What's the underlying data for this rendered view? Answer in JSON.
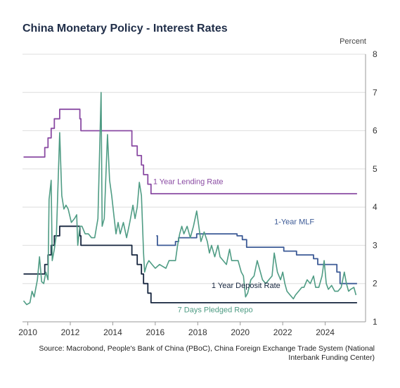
{
  "title": "China Monetary Policy - Interest Rates",
  "unit": "Percent",
  "source": "Source: Macrobond, People's Bank of China (PBoC), China Foreign Exchange Trade System (National Interbank Funding Center)",
  "chart_data": {
    "type": "line",
    "title": "China Monetary Policy - Interest Rates",
    "ylabel": "Percent",
    "xlim": [
      2009.75,
      2025.9
    ],
    "ylim": [
      1,
      8
    ],
    "x_ticks": [
      "2010",
      "2012",
      "2014",
      "2016",
      "2018",
      "2020",
      "2022",
      "2024"
    ],
    "y_ticks": [
      "1",
      "2",
      "3",
      "4",
      "5",
      "6",
      "7",
      "8"
    ],
    "grid": true,
    "y_axis_side": "right",
    "series": [
      {
        "name": "1 Year Lending Rate",
        "color": "#8a4ba3",
        "step": true,
        "points": [
          [
            2009.8,
            5.31
          ],
          [
            2010.8,
            5.56
          ],
          [
            2010.95,
            5.81
          ],
          [
            2011.1,
            6.06
          ],
          [
            2011.25,
            6.31
          ],
          [
            2011.5,
            6.56
          ],
          [
            2012.45,
            6.31
          ],
          [
            2012.5,
            6.0
          ],
          [
            2014.9,
            5.6
          ],
          [
            2015.15,
            5.35
          ],
          [
            2015.35,
            5.1
          ],
          [
            2015.45,
            4.85
          ],
          [
            2015.65,
            4.6
          ],
          [
            2015.8,
            4.35
          ],
          [
            2025.5,
            4.35
          ]
        ]
      },
      {
        "name": "1-Year MLF",
        "color": "#3c5a96",
        "step": true,
        "points": [
          [
            2016.05,
            3.25
          ],
          [
            2016.1,
            3.0
          ],
          [
            2016.95,
            3.1
          ],
          [
            2017.1,
            3.2
          ],
          [
            2017.95,
            3.3
          ],
          [
            2019.85,
            3.25
          ],
          [
            2020.1,
            3.15
          ],
          [
            2020.3,
            2.95
          ],
          [
            2022.05,
            2.85
          ],
          [
            2022.65,
            2.75
          ],
          [
            2023.45,
            2.65
          ],
          [
            2023.65,
            2.5
          ],
          [
            2024.55,
            2.3
          ],
          [
            2024.7,
            2.0
          ],
          [
            2025.5,
            2.0
          ]
        ]
      },
      {
        "name": "1 Year Deposit Rate",
        "color": "#16253e",
        "step": true,
        "points": [
          [
            2009.8,
            2.25
          ],
          [
            2010.8,
            2.5
          ],
          [
            2010.95,
            2.75
          ],
          [
            2011.1,
            3.0
          ],
          [
            2011.25,
            3.25
          ],
          [
            2011.5,
            3.5
          ],
          [
            2012.45,
            3.25
          ],
          [
            2012.5,
            3.0
          ],
          [
            2014.9,
            2.75
          ],
          [
            2015.15,
            2.5
          ],
          [
            2015.35,
            2.25
          ],
          [
            2015.45,
            2.0
          ],
          [
            2015.65,
            1.75
          ],
          [
            2015.8,
            1.5
          ],
          [
            2025.5,
            1.5
          ]
        ]
      },
      {
        "name": "7 Days Pledged Repo",
        "color": "#4f9c84",
        "step": false,
        "points": [
          [
            2009.8,
            1.55
          ],
          [
            2009.95,
            1.45
          ],
          [
            2010.1,
            1.5
          ],
          [
            2010.2,
            1.8
          ],
          [
            2010.3,
            1.65
          ],
          [
            2010.45,
            2.1
          ],
          [
            2010.55,
            2.7
          ],
          [
            2010.65,
            2.05
          ],
          [
            2010.75,
            2.0
          ],
          [
            2010.85,
            2.3
          ],
          [
            2010.95,
            2.1
          ],
          [
            2011.0,
            4.2
          ],
          [
            2011.1,
            4.7
          ],
          [
            2011.15,
            2.6
          ],
          [
            2011.25,
            2.9
          ],
          [
            2011.35,
            3.3
          ],
          [
            2011.5,
            5.95
          ],
          [
            2011.6,
            4.3
          ],
          [
            2011.7,
            3.95
          ],
          [
            2011.8,
            4.05
          ],
          [
            2011.9,
            3.95
          ],
          [
            2012.05,
            3.6
          ],
          [
            2012.2,
            3.7
          ],
          [
            2012.3,
            3.8
          ],
          [
            2012.35,
            3.0
          ],
          [
            2012.45,
            3.5
          ],
          [
            2012.55,
            3.5
          ],
          [
            2012.7,
            3.3
          ],
          [
            2012.85,
            3.3
          ],
          [
            2013.0,
            3.2
          ],
          [
            2013.15,
            3.2
          ],
          [
            2013.3,
            3.7
          ],
          [
            2013.45,
            7.0
          ],
          [
            2013.5,
            3.5
          ],
          [
            2013.6,
            3.7
          ],
          [
            2013.75,
            5.9
          ],
          [
            2013.85,
            4.7
          ],
          [
            2013.95,
            4.3
          ],
          [
            2014.05,
            3.8
          ],
          [
            2014.15,
            3.3
          ],
          [
            2014.25,
            3.6
          ],
          [
            2014.35,
            3.3
          ],
          [
            2014.5,
            3.6
          ],
          [
            2014.65,
            3.2
          ],
          [
            2014.8,
            3.6
          ],
          [
            2014.95,
            4.05
          ],
          [
            2015.05,
            3.7
          ],
          [
            2015.15,
            4.0
          ],
          [
            2015.25,
            4.65
          ],
          [
            2015.35,
            4.3
          ],
          [
            2015.45,
            2.8
          ],
          [
            2015.5,
            2.3
          ],
          [
            2015.6,
            2.5
          ],
          [
            2015.7,
            2.6
          ],
          [
            2015.85,
            2.5
          ],
          [
            2016.0,
            2.4
          ],
          [
            2016.2,
            2.5
          ],
          [
            2016.35,
            2.45
          ],
          [
            2016.5,
            2.4
          ],
          [
            2016.65,
            2.6
          ],
          [
            2016.8,
            2.6
          ],
          [
            2016.95,
            2.6
          ],
          [
            2017.05,
            3.0
          ],
          [
            2017.15,
            3.3
          ],
          [
            2017.25,
            3.5
          ],
          [
            2017.35,
            3.3
          ],
          [
            2017.5,
            3.5
          ],
          [
            2017.65,
            3.2
          ],
          [
            2017.8,
            3.5
          ],
          [
            2017.95,
            3.9
          ],
          [
            2018.05,
            3.5
          ],
          [
            2018.15,
            3.1
          ],
          [
            2018.3,
            3.35
          ],
          [
            2018.45,
            3.1
          ],
          [
            2018.55,
            2.8
          ],
          [
            2018.65,
            3.0
          ],
          [
            2018.8,
            2.7
          ],
          [
            2018.95,
            3.0
          ],
          [
            2019.05,
            2.7
          ],
          [
            2019.2,
            2.6
          ],
          [
            2019.35,
            2.5
          ],
          [
            2019.5,
            2.9
          ],
          [
            2019.6,
            2.6
          ],
          [
            2019.75,
            2.6
          ],
          [
            2019.9,
            2.6
          ],
          [
            2020.05,
            2.3
          ],
          [
            2020.15,
            2.2
          ],
          [
            2020.25,
            1.65
          ],
          [
            2020.35,
            1.75
          ],
          [
            2020.5,
            2.1
          ],
          [
            2020.65,
            2.2
          ],
          [
            2020.8,
            2.6
          ],
          [
            2020.95,
            2.3
          ],
          [
            2021.05,
            2.1
          ],
          [
            2021.2,
            2.0
          ],
          [
            2021.35,
            2.1
          ],
          [
            2021.5,
            2.2
          ],
          [
            2021.6,
            2.8
          ],
          [
            2021.75,
            2.3
          ],
          [
            2021.9,
            2.1
          ],
          [
            2022.0,
            2.3
          ],
          [
            2022.1,
            2.0
          ],
          [
            2022.2,
            1.8
          ],
          [
            2022.35,
            1.7
          ],
          [
            2022.5,
            1.6
          ],
          [
            2022.6,
            1.7
          ],
          [
            2022.75,
            1.8
          ],
          [
            2022.9,
            1.9
          ],
          [
            2023.0,
            1.9
          ],
          [
            2023.15,
            2.1
          ],
          [
            2023.3,
            2.0
          ],
          [
            2023.45,
            2.2
          ],
          [
            2023.55,
            1.9
          ],
          [
            2023.7,
            1.9
          ],
          [
            2023.85,
            2.2
          ],
          [
            2023.95,
            2.6
          ],
          [
            2024.05,
            2.0
          ],
          [
            2024.15,
            1.85
          ],
          [
            2024.3,
            1.95
          ],
          [
            2024.45,
            1.8
          ],
          [
            2024.6,
            1.8
          ],
          [
            2024.75,
            1.9
          ],
          [
            2024.9,
            2.3
          ],
          [
            2025.0,
            2.0
          ],
          [
            2025.1,
            1.8
          ],
          [
            2025.2,
            1.85
          ],
          [
            2025.35,
            1.9
          ],
          [
            2025.45,
            1.7
          ]
        ]
      }
    ],
    "annotations": [
      {
        "series": "1 Year Lending Rate",
        "text": "1 Year Lending Rate",
        "x": 2015.9,
        "y": 4.6
      },
      {
        "series": "1-Year MLF",
        "text": "1-Year MLF",
        "x": 2021.6,
        "y": 3.55
      },
      {
        "series": "1 Year Deposit Rate",
        "text": "1 Year Deposit Rate",
        "x": 2018.65,
        "y": 1.88
      },
      {
        "series": "7 Days Pledged Repo",
        "text": "7 Days Pledged Repo",
        "x": 2017.05,
        "y": 1.25
      }
    ]
  }
}
